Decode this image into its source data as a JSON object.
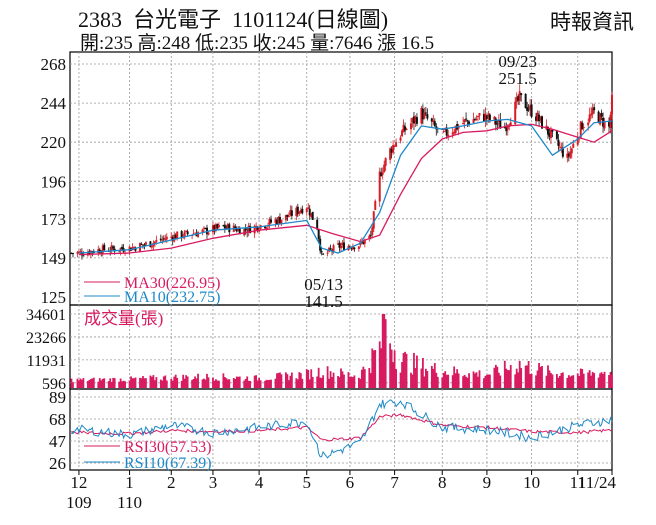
{
  "header": {
    "stock_code": "2383",
    "stock_name": "台光電子",
    "date_title": "1101124(日線圖)",
    "source": "時報資訊",
    "quote_line": "開:235 高:248 低:235 收:245 量:7646 漲 16.5"
  },
  "chart_data": [
    {
      "type": "candlestick",
      "panel": "price",
      "yticks": [
        268,
        244,
        220,
        196,
        173,
        149,
        125
      ],
      "ylim": [
        125,
        268
      ],
      "x_tick_labels": [
        "12",
        "1",
        "2",
        "3",
        "4",
        "5",
        "6",
        "7",
        "8",
        "9",
        "10",
        "11",
        "11/24"
      ],
      "x_year_labels": [
        "109",
        "110"
      ],
      "annotations": [
        {
          "label_date": "05/13",
          "label_value": "141.5",
          "x": "2021-05-13",
          "y": 141.5
        },
        {
          "label_date": "09/23",
          "label_value": "251.5",
          "x": "2021-09-23",
          "y": 251.5
        }
      ],
      "legend": [
        {
          "label": "MA30(226.95)",
          "color": "#d81b60"
        },
        {
          "label": "MA10(232.75)",
          "color": "#1e88c8"
        }
      ],
      "series": [
        {
          "name": "MA30",
          "color": "#d81b60",
          "x": [
            "2020-12-01",
            "2021-01-04",
            "2021-02-01",
            "2021-03-01",
            "2021-04-01",
            "2021-05-03",
            "2021-05-20",
            "2021-06-08",
            "2021-06-21",
            "2021-07-05",
            "2021-07-19",
            "2021-08-02",
            "2021-08-16",
            "2021-09-01",
            "2021-09-15",
            "2021-10-01",
            "2021-10-15",
            "2021-11-01",
            "2021-11-12",
            "2021-11-24"
          ],
          "values": [
            151,
            152,
            155,
            161,
            166,
            169,
            164,
            159,
            163,
            188,
            210,
            222,
            226,
            227,
            230,
            231,
            228,
            223,
            220,
            227
          ]
        },
        {
          "name": "MA10",
          "color": "#1e88c8",
          "x": [
            "2020-12-01",
            "2021-01-04",
            "2021-02-01",
            "2021-03-01",
            "2021-04-01",
            "2021-05-03",
            "2021-05-13",
            "2021-05-24",
            "2021-06-08",
            "2021-06-21",
            "2021-07-05",
            "2021-07-19",
            "2021-08-02",
            "2021-08-16",
            "2021-09-01",
            "2021-09-15",
            "2021-10-01",
            "2021-10-15",
            "2021-11-01",
            "2021-11-12",
            "2021-11-24"
          ],
          "values": [
            152,
            154,
            160,
            166,
            168,
            172,
            155,
            152,
            158,
            177,
            212,
            230,
            228,
            230,
            233,
            234,
            230,
            212,
            222,
            232,
            233
          ]
        },
        {
          "name": "close",
          "color": "#555555",
          "x": [
            "2020-12-01",
            "2020-12-15",
            "2021-01-04",
            "2021-01-18",
            "2021-02-01",
            "2021-02-22",
            "2021-03-08",
            "2021-03-22",
            "2021-04-06",
            "2021-04-19",
            "2021-05-03",
            "2021-05-10",
            "2021-05-13",
            "2021-05-24",
            "2021-06-07",
            "2021-06-15",
            "2021-06-21",
            "2021-06-28",
            "2021-07-05",
            "2021-07-19",
            "2021-08-02",
            "2021-08-16",
            "2021-08-30",
            "2021-09-13",
            "2021-09-23",
            "2021-10-04",
            "2021-10-14",
            "2021-10-25",
            "2021-11-04",
            "2021-11-12",
            "2021-11-22",
            "2021-11-24"
          ],
          "values": [
            152,
            154,
            155,
            158,
            162,
            165,
            168,
            166,
            170,
            174,
            181,
            168,
            150,
            156,
            157,
            162,
            200,
            215,
            225,
            238,
            224,
            232,
            236,
            229,
            247,
            236,
            224,
            210,
            231,
            238,
            229,
            245
          ]
        }
      ]
    },
    {
      "type": "bar",
      "panel": "volume",
      "legend": [
        {
          "label": "成交量(張)",
          "color": "#d81b60"
        }
      ],
      "yticks": [
        34601,
        23266,
        11931,
        596
      ],
      "ylim": [
        0,
        34601
      ],
      "x": [
        "2020-12-01",
        "2021-01-04",
        "2021-02-01",
        "2021-03-01",
        "2021-04-01",
        "2021-05-03",
        "2021-05-13",
        "2021-06-07",
        "2021-06-21",
        "2021-06-24",
        "2021-07-05",
        "2021-07-19",
        "2021-08-02",
        "2021-08-16",
        "2021-09-01",
        "2021-09-23",
        "2021-10-14",
        "2021-11-01",
        "2021-11-24"
      ],
      "values": [
        2500,
        3000,
        4000,
        4500,
        3500,
        6000,
        8000,
        5000,
        22000,
        34601,
        15000,
        11000,
        8000,
        7000,
        6000,
        12000,
        7000,
        6000,
        7646
      ]
    },
    {
      "type": "line",
      "panel": "rsi",
      "yticks": [
        89,
        68,
        47,
        26
      ],
      "ylim": [
        26,
        89
      ],
      "legend": [
        {
          "label": "RSI30(57.53)",
          "color": "#d81b60"
        },
        {
          "label": "RSI10(67.39)",
          "color": "#1e88c8"
        }
      ],
      "series": [
        {
          "name": "RSI30",
          "color": "#d81b60",
          "x": [
            "2020-12-01",
            "2021-01-04",
            "2021-02-01",
            "2021-03-01",
            "2021-04-01",
            "2021-05-03",
            "2021-05-13",
            "2021-06-08",
            "2021-06-21",
            "2021-07-05",
            "2021-08-02",
            "2021-09-01",
            "2021-10-01",
            "2021-11-01",
            "2021-11-24"
          ],
          "values": [
            55,
            54,
            57,
            56,
            57,
            60,
            48,
            50,
            70,
            72,
            62,
            60,
            56,
            55,
            57.53
          ]
        },
        {
          "name": "RSI10",
          "color": "#1e88c8",
          "x": [
            "2020-12-01",
            "2021-01-04",
            "2021-02-01",
            "2021-03-01",
            "2021-04-01",
            "2021-05-03",
            "2021-05-13",
            "2021-06-08",
            "2021-06-21",
            "2021-07-05",
            "2021-08-02",
            "2021-09-01",
            "2021-10-01",
            "2021-11-01",
            "2021-11-24"
          ],
          "values": [
            58,
            53,
            62,
            55,
            60,
            66,
            32,
            45,
            82,
            85,
            60,
            58,
            50,
            62,
            67.39
          ]
        }
      ]
    }
  ]
}
